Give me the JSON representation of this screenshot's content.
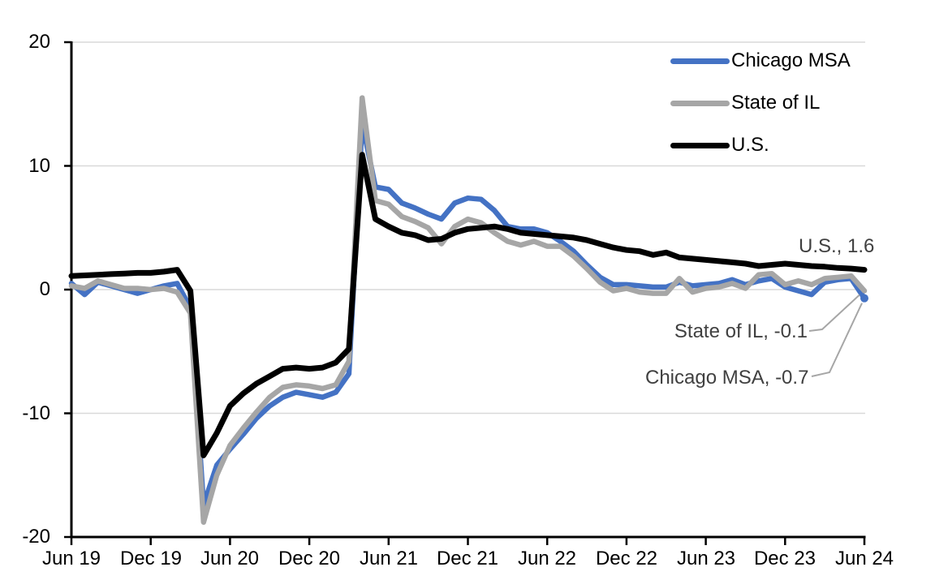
{
  "chart_data": {
    "type": "line",
    "title": "",
    "xlabel": "",
    "ylabel": "",
    "ylim": [
      -20,
      20
    ],
    "grid": true,
    "grid_color": "#d9d9d9",
    "axis_color": "#000000",
    "leader_color": "#a6a6a6",
    "legend_position": "top-right",
    "x_tick_labels": [
      "Jun 19",
      "Dec 19",
      "Jun 20",
      "Dec 20",
      "Jun 21",
      "Dec 21",
      "Jun 22",
      "Dec 22",
      "Jun 23",
      "Dec 23",
      "Jun 24"
    ],
    "y_tick_labels": [
      "20",
      "10",
      "0",
      "-10",
      "-20"
    ],
    "y_ticks": [
      20,
      10,
      0,
      -10,
      -20
    ],
    "x_months_per_tick": 6,
    "series": [
      {
        "name": "Chicago MSA",
        "color": "#4472C4",
        "values": [
          0.5,
          -0.4,
          0.6,
          0.3,
          0.0,
          -0.3,
          0.0,
          0.3,
          0.5,
          -1.5,
          -17.4,
          -14.2,
          -12.9,
          -11.7,
          -10.4,
          -9.4,
          -8.7,
          -8.3,
          -8.5,
          -8.7,
          -8.3,
          -6.8,
          13.5,
          8.3,
          8.1,
          7.0,
          6.6,
          6.1,
          5.7,
          7.0,
          7.4,
          7.3,
          6.4,
          5.1,
          4.9,
          4.9,
          4.6,
          3.9,
          3.1,
          2.0,
          1.0,
          0.4,
          0.4,
          0.3,
          0.2,
          0.2,
          0.6,
          0.3,
          0.4,
          0.5,
          0.8,
          0.4,
          0.7,
          0.9,
          0.2,
          -0.1,
          -0.4,
          0.6,
          0.8,
          0.9,
          -0.7
        ]
      },
      {
        "name": "State of IL",
        "color": "#A6A6A6",
        "values": [
          0.3,
          0.1,
          0.7,
          0.4,
          0.1,
          0.1,
          0.0,
          0.1,
          -0.2,
          -1.9,
          -18.8,
          -15.0,
          -12.6,
          -11.2,
          -9.9,
          -8.7,
          -7.9,
          -7.7,
          -7.8,
          -8.0,
          -7.7,
          -5.8,
          15.5,
          7.2,
          6.9,
          5.9,
          5.5,
          5.0,
          3.7,
          5.1,
          5.7,
          5.4,
          4.6,
          3.9,
          3.6,
          3.9,
          3.5,
          3.5,
          2.7,
          1.7,
          0.6,
          -0.1,
          0.1,
          -0.2,
          -0.3,
          -0.3,
          0.9,
          -0.2,
          0.1,
          0.2,
          0.5,
          0.1,
          1.2,
          1.3,
          0.4,
          0.7,
          0.4,
          0.9,
          1.0,
          1.1,
          -0.1
        ]
      },
      {
        "name": "U.S.",
        "color": "#000000",
        "values": [
          1.1,
          1.15,
          1.2,
          1.25,
          1.3,
          1.35,
          1.35,
          1.45,
          1.6,
          -0.1,
          -13.4,
          -11.6,
          -9.4,
          -8.4,
          -7.6,
          -7.0,
          -6.4,
          -6.3,
          -6.4,
          -6.3,
          -5.9,
          -4.8,
          10.9,
          5.7,
          5.1,
          4.6,
          4.4,
          4.0,
          4.1,
          4.6,
          4.9,
          5.0,
          5.1,
          4.9,
          4.6,
          4.5,
          4.4,
          4.3,
          4.2,
          4.0,
          3.7,
          3.4,
          3.2,
          3.1,
          2.8,
          3.0,
          2.6,
          2.5,
          2.4,
          2.3,
          2.2,
          2.1,
          1.9,
          2.0,
          2.1,
          2.0,
          1.9,
          1.85,
          1.75,
          1.7,
          1.6
        ]
      }
    ],
    "end_labels": [
      {
        "series": "U.S.",
        "value": 1.6
      },
      {
        "series": "State of IL",
        "value": -0.1
      },
      {
        "series": "Chicago MSA",
        "value": -0.7
      }
    ]
  },
  "annotations": {
    "us": "U.S., 1.6",
    "il": "State of IL, -0.1",
    "chicago": "Chicago MSA, -0.7"
  }
}
